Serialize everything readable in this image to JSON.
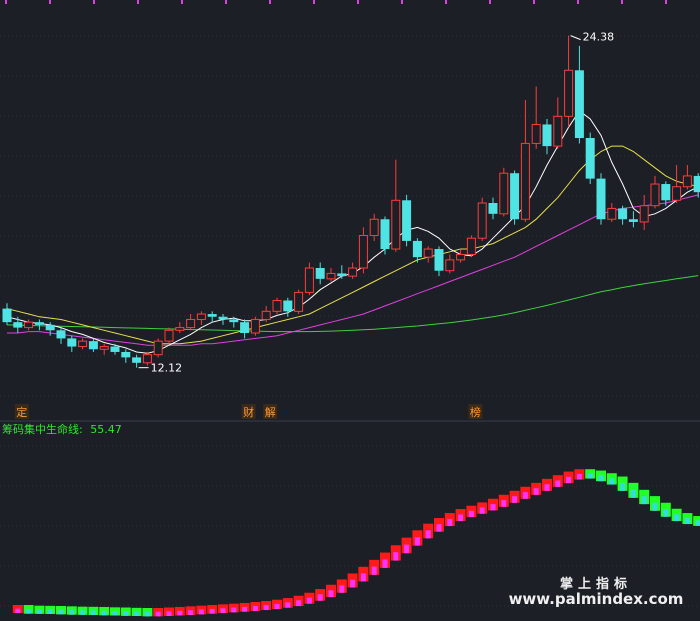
{
  "chart_data": [
    {
      "type": "candlestick",
      "title": "",
      "y_range": [
        11.0,
        25.4
      ],
      "grid": true,
      "colors": {
        "up": "#ff3b3b",
        "down": "#4fe3e3",
        "ma5": "#ffffff",
        "ma10": "#e8e04a",
        "ma20": "#e040e0",
        "ma60": "#40d040",
        "ma120": "#30c030"
      },
      "annotations": {
        "high_label": "24.38",
        "low_label": "12.12",
        "high": 24.38,
        "low": 12.12
      },
      "event_tags": [
        {
          "text": "定",
          "index": 1
        },
        {
          "text": "财",
          "index": 22
        },
        {
          "text": "解",
          "index": 24
        },
        {
          "text": "榜",
          "index": 43
        }
      ],
      "candles": [
        [
          14.3,
          13.8,
          14.5,
          13.7
        ],
        [
          13.8,
          13.6,
          14.0,
          13.4
        ],
        [
          13.6,
          13.8,
          13.9,
          13.5
        ],
        [
          13.8,
          13.7,
          13.9,
          13.5
        ],
        [
          13.7,
          13.5,
          13.8,
          13.3
        ],
        [
          13.5,
          13.2,
          13.6,
          13.0
        ],
        [
          13.2,
          12.9,
          13.3,
          12.7
        ],
        [
          12.9,
          13.1,
          13.2,
          12.8
        ],
        [
          13.1,
          12.8,
          13.2,
          12.7
        ],
        [
          12.8,
          12.9,
          13.0,
          12.6
        ],
        [
          12.9,
          12.7,
          13.0,
          12.6
        ],
        [
          12.7,
          12.5,
          12.8,
          12.3
        ],
        [
          12.5,
          12.3,
          12.6,
          12.12
        ],
        [
          12.3,
          12.6,
          12.7,
          12.2
        ],
        [
          12.6,
          13.1,
          13.2,
          12.5
        ],
        [
          13.1,
          13.5,
          13.6,
          13.0
        ],
        [
          13.5,
          13.6,
          13.8,
          13.4
        ],
        [
          13.6,
          13.9,
          14.1,
          13.5
        ],
        [
          13.9,
          14.1,
          14.2,
          13.7
        ],
        [
          14.1,
          14.0,
          14.2,
          13.8
        ],
        [
          14.0,
          13.9,
          14.1,
          13.7
        ],
        [
          13.9,
          13.8,
          14.0,
          13.6
        ],
        [
          13.8,
          13.4,
          13.9,
          13.2
        ],
        [
          13.4,
          13.9,
          14.0,
          13.3
        ],
        [
          13.9,
          14.2,
          14.4,
          13.8
        ],
        [
          14.2,
          14.6,
          14.7,
          14.1
        ],
        [
          14.6,
          14.2,
          14.7,
          14.0
        ],
        [
          14.2,
          14.9,
          15.0,
          14.1
        ],
        [
          14.9,
          15.8,
          16.0,
          14.8
        ],
        [
          15.8,
          15.4,
          16.0,
          15.2
        ],
        [
          15.4,
          15.6,
          15.8,
          15.3
        ],
        [
          15.6,
          15.5,
          15.9,
          15.4
        ],
        [
          15.5,
          15.8,
          16.0,
          15.4
        ],
        [
          15.8,
          17.0,
          17.3,
          15.6
        ],
        [
          17.0,
          17.6,
          17.8,
          16.8
        ],
        [
          17.6,
          16.5,
          17.7,
          16.3
        ],
        [
          16.5,
          18.3,
          19.8,
          16.4
        ],
        [
          18.3,
          16.8,
          18.5,
          16.6
        ],
        [
          16.8,
          16.2,
          16.9,
          16.0
        ],
        [
          16.2,
          16.5,
          16.6,
          16.0
        ],
        [
          16.5,
          15.7,
          16.6,
          15.5
        ],
        [
          15.7,
          16.1,
          16.3,
          15.6
        ],
        [
          16.1,
          16.3,
          16.5,
          16.0
        ],
        [
          16.3,
          16.9,
          17.0,
          16.2
        ],
        [
          16.9,
          18.2,
          18.4,
          16.8
        ],
        [
          18.2,
          17.8,
          18.4,
          17.6
        ],
        [
          17.8,
          19.3,
          19.5,
          17.7
        ],
        [
          19.3,
          17.6,
          19.4,
          17.4
        ],
        [
          17.6,
          20.4,
          22.0,
          17.5
        ],
        [
          20.4,
          21.1,
          22.5,
          20.2
        ],
        [
          21.1,
          20.3,
          21.3,
          20.0
        ],
        [
          20.3,
          21.4,
          22.1,
          20.2
        ],
        [
          21.4,
          23.1,
          24.38,
          21.0
        ],
        [
          23.1,
          20.6,
          24.0,
          20.4
        ],
        [
          20.6,
          19.1,
          20.8,
          18.9
        ],
        [
          19.1,
          17.6,
          19.3,
          17.4
        ],
        [
          17.6,
          18.0,
          18.2,
          17.5
        ],
        [
          18.0,
          17.6,
          18.1,
          17.4
        ],
        [
          17.6,
          17.5,
          17.9,
          17.3
        ],
        [
          17.5,
          18.1,
          18.5,
          17.2
        ],
        [
          18.1,
          18.9,
          19.2,
          18.0
        ],
        [
          18.9,
          18.3,
          19.0,
          18.1
        ],
        [
          18.3,
          18.8,
          19.6,
          18.2
        ],
        [
          18.8,
          19.2,
          19.6,
          18.7
        ],
        [
          19.2,
          18.6,
          19.3,
          18.4
        ]
      ],
      "ma5": [
        14.0,
        13.9,
        13.8,
        13.75,
        13.7,
        13.6,
        13.45,
        13.35,
        13.2,
        13.05,
        12.95,
        12.85,
        12.7,
        12.65,
        12.75,
        12.95,
        13.15,
        13.35,
        13.6,
        13.8,
        13.9,
        13.95,
        13.85,
        13.85,
        13.9,
        14.05,
        14.15,
        14.35,
        14.65,
        15.0,
        15.25,
        15.5,
        15.6,
        15.85,
        16.2,
        16.5,
        16.9,
        17.2,
        17.3,
        17.15,
        16.9,
        16.5,
        16.3,
        16.25,
        16.5,
        16.9,
        17.3,
        17.7,
        18.1,
        18.8,
        19.6,
        20.3,
        21.0,
        21.6,
        21.3,
        20.7,
        19.7,
        18.9,
        18.0,
        17.7,
        17.8,
        18.0,
        18.3,
        18.6,
        18.8
      ],
      "ma10": [
        14.3,
        14.2,
        14.1,
        14.0,
        13.95,
        13.9,
        13.8,
        13.7,
        13.6,
        13.5,
        13.4,
        13.3,
        13.2,
        13.1,
        13.0,
        13.0,
        13.0,
        13.05,
        13.1,
        13.2,
        13.3,
        13.4,
        13.5,
        13.6,
        13.7,
        13.8,
        13.9,
        14.0,
        14.1,
        14.3,
        14.5,
        14.7,
        14.9,
        15.1,
        15.3,
        15.5,
        15.7,
        15.9,
        16.1,
        16.2,
        16.3,
        16.4,
        16.5,
        16.5,
        16.6,
        16.7,
        16.9,
        17.1,
        17.3,
        17.6,
        18.0,
        18.4,
        18.9,
        19.4,
        19.8,
        20.1,
        20.3,
        20.3,
        20.1,
        19.8,
        19.5,
        19.2,
        19.0,
        18.9,
        18.8
      ],
      "ma20": [
        13.4,
        13.4,
        13.45,
        13.45,
        13.4,
        13.35,
        13.3,
        13.25,
        13.2,
        13.15,
        13.1,
        13.05,
        13.0,
        12.95,
        12.95,
        12.95,
        12.95,
        12.95,
        13.0,
        13.0,
        13.05,
        13.1,
        13.15,
        13.2,
        13.25,
        13.3,
        13.4,
        13.5,
        13.6,
        13.7,
        13.8,
        13.9,
        14.0,
        14.1,
        14.25,
        14.4,
        14.55,
        14.7,
        14.85,
        15.0,
        15.15,
        15.3,
        15.45,
        15.6,
        15.75,
        15.9,
        16.05,
        16.2,
        16.4,
        16.6,
        16.8,
        17.0,
        17.2,
        17.4,
        17.6,
        17.8,
        17.9,
        18.0,
        18.05,
        18.1,
        18.15,
        18.2,
        18.3,
        18.4,
        18.5
      ],
      "ma60": [
        13.7,
        13.69,
        13.68,
        13.67,
        13.66,
        13.65,
        13.64,
        13.63,
        13.62,
        13.61,
        13.6,
        13.59,
        13.58,
        13.57,
        13.56,
        13.55,
        13.54,
        13.53,
        13.52,
        13.51,
        13.5,
        13.49,
        13.48,
        13.47,
        13.46,
        13.45,
        13.45,
        13.45,
        13.45,
        13.46,
        13.47,
        13.48,
        13.5,
        13.52,
        13.54,
        13.57,
        13.6,
        13.63,
        13.66,
        13.7,
        13.74,
        13.78,
        13.83,
        13.88,
        13.94,
        14.0,
        14.07,
        14.15,
        14.24,
        14.33,
        14.42,
        14.52,
        14.62,
        14.72,
        14.82,
        14.92,
        15.0,
        15.08,
        15.15,
        15.22,
        15.28,
        15.34,
        15.4,
        15.46,
        15.52
      ]
    },
    {
      "type": "bar",
      "title": "筹码集中生命线: 55.47",
      "indicator_label": "筹码集中生命线:",
      "indicator_value": "55.47",
      "y_range": [
        0,
        100
      ],
      "colors": {
        "rising": "#ff1a1a",
        "rising_inner": "#ff33ff",
        "falling": "#22ff22",
        "falling_inner": "#33dddd"
      },
      "values": [
        3,
        3,
        2.6,
        2.5,
        2.4,
        2.2,
        2.0,
        1.9,
        1.8,
        1.6,
        1.5,
        1.3,
        1.2,
        1.0,
        1.2,
        1.5,
        1.8,
        2.2,
        2.6,
        3.0,
        3.4,
        3.8,
        4.2,
        4.8,
        5.4,
        6.2,
        7.2,
        8.6,
        10.4,
        12.6,
        15.2,
        18.4,
        22.0,
        26.0,
        30.2,
        34.6,
        39.0,
        43.6,
        48.0,
        52.0,
        55.4,
        58.4,
        60.8,
        62.8,
        64.8,
        67.0,
        69.4,
        71.8,
        74.2,
        76.6,
        79.0,
        81.2,
        83.4,
        84.8,
        84.0,
        82.4,
        80.4,
        76.6,
        72.4,
        68.6,
        64.6,
        61.0,
        58.4,
        56.6,
        55.5
      ]
    }
  ],
  "watermark": {
    "line1": "掌上指标",
    "line2": "www.palmindex.com"
  }
}
